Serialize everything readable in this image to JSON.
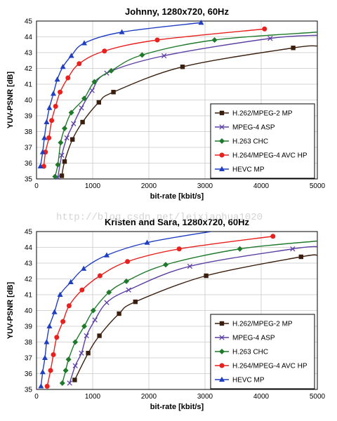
{
  "watermark": "http://blog.csdn.net/leixiaohua1020",
  "chart_data": [
    {
      "type": "line",
      "title": "Johnny, 1280x720, 60Hz",
      "xlabel": "bit-rate [kbit/s]",
      "ylabel": "YUV-PSNR [dB]",
      "xlim": [
        0,
        5000
      ],
      "ylim": [
        35,
        45
      ],
      "xticks": [
        0,
        1000,
        2000,
        3000,
        4000,
        5000
      ],
      "yticks": [
        35,
        36,
        37,
        38,
        39,
        40,
        41,
        42,
        43,
        44,
        45
      ],
      "grid": true,
      "legend_position": "bottom-right",
      "series": [
        {
          "name": "H.262/MPEG-2 MP",
          "color": "#3b1f0e",
          "marker": "square",
          "points": [
            [
              450,
              35.2
            ],
            [
              500,
              36.1
            ],
            [
              640,
              37.5
            ],
            [
              820,
              38.6
            ],
            [
              1110,
              39.85
            ],
            [
              1370,
              40.5
            ],
            [
              2600,
              42.1
            ],
            [
              4570,
              43.3
            ]
          ],
          "curve_end": [
            5000,
            43.42
          ]
        },
        {
          "name": "MPEG-4 ASP",
          "color": "#5b3fa3",
          "marker": "x",
          "points": [
            [
              380,
              35.1
            ],
            [
              450,
              36.5
            ],
            [
              540,
              37.6
            ],
            [
              660,
              38.5
            ],
            [
              800,
              39.5
            ],
            [
              990,
              40.6
            ],
            [
              1250,
              41.7
            ],
            [
              2270,
              42.8
            ],
            [
              4160,
              43.9
            ]
          ],
          "curve_end": [
            5000,
            44.1
          ]
        },
        {
          "name": "H.263 CHC",
          "color": "#1e7a2a",
          "marker": "diamond",
          "points": [
            [
              330,
              35.15
            ],
            [
              380,
              35.9
            ],
            [
              430,
              37.3
            ],
            [
              500,
              38.2
            ],
            [
              620,
              39.2
            ],
            [
              850,
              40.1
            ],
            [
              1030,
              41.15
            ],
            [
              1330,
              41.85
            ],
            [
              1880,
              42.85
            ],
            [
              3170,
              43.8
            ]
          ],
          "curve_end": [
            5000,
            44.3
          ]
        },
        {
          "name": "H.264/MPEG-4 AVC HP",
          "color": "#e8201e",
          "marker": "circle",
          "points": [
            [
              130,
              35.8
            ],
            [
              160,
              36.7
            ],
            [
              220,
              37.6
            ],
            [
              270,
              38.7
            ],
            [
              340,
              39.6
            ],
            [
              420,
              40.5
            ],
            [
              560,
              41.4
            ],
            [
              760,
              42.3
            ],
            [
              1210,
              43.1
            ],
            [
              2150,
              43.8
            ],
            [
              4060,
              44.5
            ]
          ],
          "curve_end": [
            4060,
            44.5
          ]
        },
        {
          "name": "HEVC MP",
          "color": "#1f3fc0",
          "marker": "triangle",
          "points": [
            [
              70,
              35.8
            ],
            [
              110,
              36.7
            ],
            [
              140,
              37.6
            ],
            [
              180,
              38.6
            ],
            [
              230,
              39.5
            ],
            [
              300,
              40.4
            ],
            [
              370,
              41.3
            ],
            [
              470,
              42.1
            ],
            [
              620,
              42.8
            ],
            [
              850,
              43.6
            ],
            [
              1520,
              44.3
            ],
            [
              2930,
              44.9
            ]
          ],
          "curve_end": [
            2930,
            44.9
          ]
        }
      ]
    },
    {
      "type": "line",
      "title": "Kristen and Sara, 1280x720, 60Hz",
      "xlabel": "bit-rate [kbit/s]",
      "ylabel": "YUV-PSNR [dB]",
      "xlim": [
        0,
        5000
      ],
      "ylim": [
        35,
        45
      ],
      "xticks": [
        0,
        1000,
        2000,
        3000,
        4000,
        5000
      ],
      "yticks": [
        35,
        36,
        37,
        38,
        39,
        40,
        41,
        42,
        43,
        44,
        45
      ],
      "grid": true,
      "legend_position": "bottom-right",
      "series": [
        {
          "name": "H.262/MPEG-2 MP",
          "color": "#3b1f0e",
          "marker": "square",
          "points": [
            [
              680,
              35.6
            ],
            [
              920,
              37.3
            ],
            [
              1120,
              38.4
            ],
            [
              1470,
              39.8
            ],
            [
              1760,
              40.55
            ],
            [
              3020,
              42.2
            ],
            [
              4710,
              43.4
            ]
          ],
          "curve_end": [
            5000,
            43.5
          ]
        },
        {
          "name": "MPEG-4 ASP",
          "color": "#5b3fa3",
          "marker": "x",
          "points": [
            [
              590,
              35.4
            ],
            [
              690,
              36.5
            ],
            [
              800,
              37.3
            ],
            [
              890,
              38.4
            ],
            [
              1040,
              39.4
            ],
            [
              1250,
              40.5
            ],
            [
              1640,
              41.3
            ],
            [
              2730,
              42.8
            ],
            [
              4560,
              43.9
            ]
          ],
          "curve_end": [
            5000,
            44.05
          ]
        },
        {
          "name": "H.263 CHC",
          "color": "#1e7a2a",
          "marker": "diamond",
          "points": [
            [
              460,
              35.4
            ],
            [
              520,
              36.2
            ],
            [
              570,
              36.9
            ],
            [
              690,
              38.0
            ],
            [
              850,
              39.0
            ],
            [
              1010,
              40.0
            ],
            [
              1290,
              41.15
            ],
            [
              1600,
              41.85
            ],
            [
              2300,
              42.9
            ],
            [
              3620,
              43.9
            ]
          ],
          "curve_end": [
            5000,
            44.4
          ]
        },
        {
          "name": "H.264/MPEG-4 AVC HP",
          "color": "#e8201e",
          "marker": "circle",
          "points": [
            [
              190,
              35.2
            ],
            [
              250,
              36.2
            ],
            [
              300,
              37.2
            ],
            [
              360,
              38.3
            ],
            [
              470,
              39.3
            ],
            [
              580,
              40.3
            ],
            [
              810,
              41.3
            ],
            [
              1130,
              42.2
            ],
            [
              1620,
              43.1
            ],
            [
              2540,
              43.9
            ],
            [
              4210,
              44.7
            ]
          ],
          "curve_end": [
            4210,
            44.7
          ]
        },
        {
          "name": "HEVC MP",
          "color": "#1f3fc0",
          "marker": "triangle",
          "points": [
            [
              80,
              35.2
            ],
            [
              110,
              36.1
            ],
            [
              150,
              37.0
            ],
            [
              180,
              38.0
            ],
            [
              230,
              39.0
            ],
            [
              320,
              39.9
            ],
            [
              420,
              41.0
            ],
            [
              610,
              41.8
            ],
            [
              840,
              42.65
            ],
            [
              1250,
              43.5
            ],
            [
              1970,
              44.3
            ]
          ],
          "curve_end": [
            3100,
            45.0
          ]
        }
      ]
    }
  ]
}
